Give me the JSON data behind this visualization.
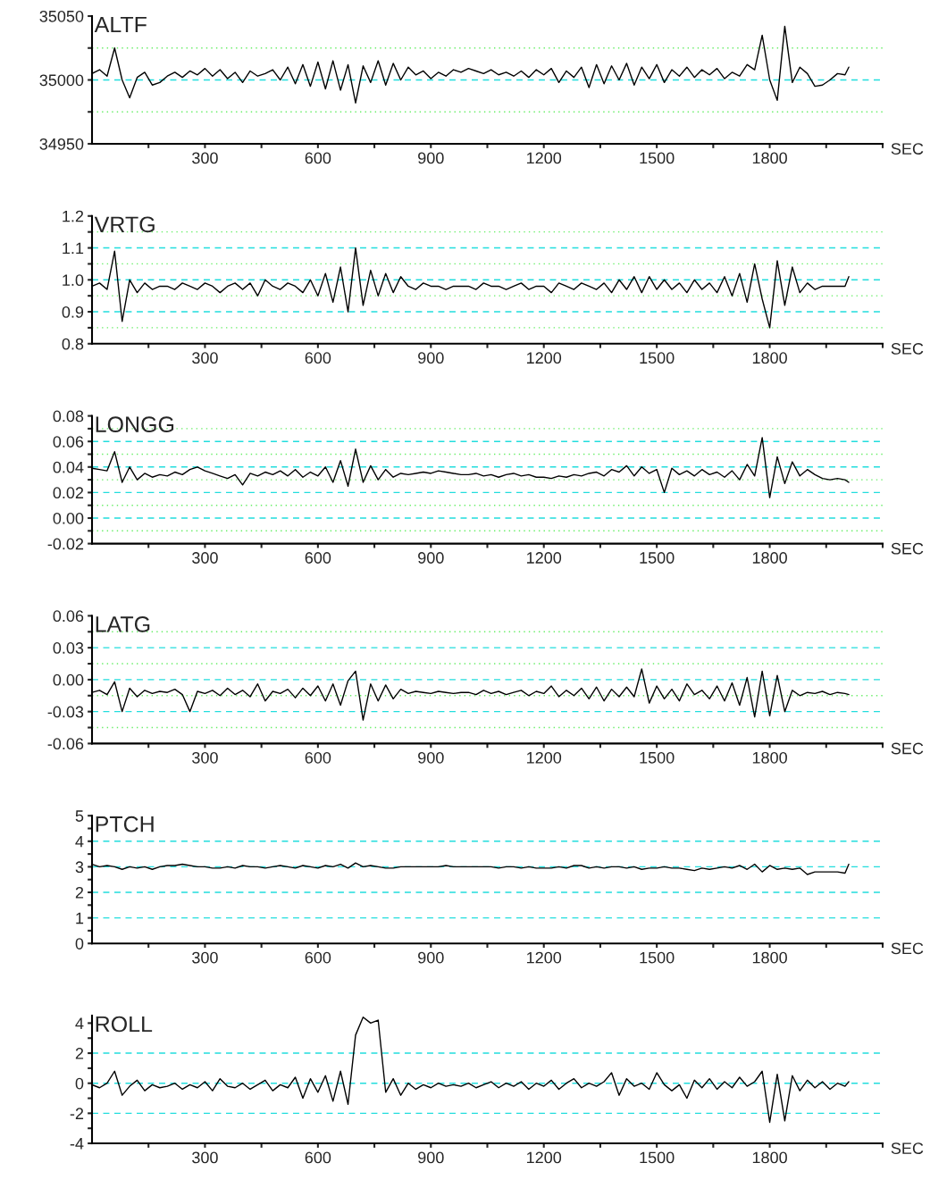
{
  "chart_data": [
    {
      "type": "line",
      "title": "ALTF",
      "xlabel": "SEC",
      "x": [
        0,
        20,
        40,
        60,
        80,
        100,
        120,
        140,
        160,
        180,
        200,
        220,
        240,
        260,
        280,
        300,
        320,
        340,
        360,
        380,
        400,
        420,
        440,
        460,
        480,
        500,
        520,
        540,
        560,
        580,
        600,
        620,
        640,
        660,
        680,
        700,
        720,
        740,
        760,
        780,
        800,
        820,
        840,
        860,
        880,
        900,
        920,
        940,
        960,
        980,
        1000,
        1020,
        1040,
        1060,
        1080,
        1100,
        1120,
        1140,
        1160,
        1180,
        1200,
        1220,
        1240,
        1260,
        1280,
        1300,
        1320,
        1340,
        1360,
        1380,
        1400,
        1420,
        1440,
        1460,
        1480,
        1500,
        1520,
        1540,
        1560,
        1580,
        1600,
        1620,
        1640,
        1660,
        1680,
        1700,
        1720,
        1740,
        1760,
        1780,
        1800,
        1820,
        1840,
        1860,
        1880,
        1900,
        1920,
        1940,
        1960,
        1980,
        2000,
        2010
      ],
      "series": [
        {
          "color": "#000000",
          "values": [
            35005,
            35008,
            35003,
            35025,
            35000,
            34986,
            35002,
            35006,
            34996,
            34998,
            35003,
            35006,
            35002,
            35007,
            35004,
            35009,
            35003,
            35008,
            35001,
            35006,
            34998,
            35007,
            35003,
            35005,
            35008,
            35000,
            35010,
            34997,
            35012,
            34995,
            35014,
            34993,
            35015,
            34992,
            35012,
            34982,
            35011,
            34998,
            35015,
            34996,
            35013,
            35000,
            35010,
            35004,
            35007,
            35001,
            35006,
            35003,
            35008,
            35006,
            35009,
            35007,
            35005,
            35008,
            35004,
            35006,
            35003,
            35007,
            35002,
            35008,
            35004,
            35009,
            34998,
            35007,
            35002,
            35010,
            34994,
            35012,
            34997,
            35011,
            35000,
            35013,
            34996,
            35010,
            35001,
            35012,
            34998,
            35008,
            35003,
            35010,
            35002,
            35008,
            35004,
            35009,
            35001,
            35006,
            35003,
            35012,
            35008,
            35035,
            35000,
            34984,
            35042,
            34998,
            35010,
            35005,
            34995,
            34996,
            35000,
            35005,
            35004,
            35010
          ]
        }
      ],
      "xlim": [
        0,
        2100
      ],
      "xticks": [
        {
          "value": 150,
          "label": null
        },
        300,
        {
          "value": 450,
          "label": null
        },
        600,
        {
          "value": 750,
          "label": null
        },
        900,
        {
          "value": 1050,
          "label": null
        },
        1200,
        {
          "value": 1350,
          "label": null
        },
        1500,
        {
          "value": 1650,
          "label": null
        },
        1800,
        {
          "value": 1950,
          "label": null
        },
        {
          "value": 2100,
          "label": null
        }
      ],
      "ylim": [
        34950,
        35050
      ],
      "yticks": [
        34950,
        {
          "value": 34975,
          "label": null
        },
        35000,
        {
          "value": 35025,
          "label": null
        },
        35050
      ],
      "ref_lines": [
        {
          "axis": "y",
          "value": 35025,
          "color": "#66ee66",
          "line_style": "dotted"
        },
        {
          "axis": "y",
          "value": 35000,
          "color": "#22dddd",
          "line_style": "dashed"
        },
        {
          "axis": "y",
          "value": 34975,
          "color": "#66ee66",
          "line_style": "dotted"
        }
      ]
    },
    {
      "type": "line",
      "title": "VRTG",
      "xlabel": "SEC",
      "x": [
        0,
        20,
        40,
        60,
        80,
        100,
        120,
        140,
        160,
        180,
        200,
        220,
        240,
        260,
        280,
        300,
        320,
        340,
        360,
        380,
        400,
        420,
        440,
        460,
        480,
        500,
        520,
        540,
        560,
        580,
        600,
        620,
        640,
        660,
        680,
        700,
        720,
        740,
        760,
        780,
        800,
        820,
        840,
        860,
        880,
        900,
        920,
        940,
        960,
        980,
        1000,
        1020,
        1040,
        1060,
        1080,
        1100,
        1120,
        1140,
        1160,
        1180,
        1200,
        1220,
        1240,
        1260,
        1280,
        1300,
        1320,
        1340,
        1360,
        1380,
        1400,
        1420,
        1440,
        1460,
        1480,
        1500,
        1520,
        1540,
        1560,
        1580,
        1600,
        1620,
        1640,
        1660,
        1680,
        1700,
        1720,
        1740,
        1760,
        1780,
        1800,
        1820,
        1840,
        1860,
        1880,
        1900,
        1920,
        1940,
        1960,
        1980,
        2000,
        2010
      ],
      "series": [
        {
          "color": "#000000",
          "values": [
            0.98,
            0.99,
            0.97,
            1.09,
            0.87,
            1.0,
            0.96,
            0.99,
            0.97,
            0.98,
            0.98,
            0.97,
            0.99,
            0.98,
            0.97,
            0.99,
            0.98,
            0.96,
            0.98,
            0.99,
            0.97,
            0.99,
            0.95,
            1.0,
            0.98,
            0.97,
            0.99,
            0.98,
            0.96,
            1.0,
            0.95,
            1.02,
            0.93,
            1.04,
            0.9,
            1.1,
            0.92,
            1.03,
            0.95,
            1.02,
            0.96,
            1.01,
            0.98,
            0.97,
            0.99,
            0.98,
            0.98,
            0.97,
            0.98,
            0.98,
            0.98,
            0.97,
            0.99,
            0.98,
            0.98,
            0.97,
            0.98,
            0.99,
            0.97,
            0.98,
            0.98,
            0.96,
            0.99,
            0.98,
            0.97,
            0.99,
            0.98,
            0.97,
            0.99,
            0.96,
            1.0,
            0.97,
            1.01,
            0.96,
            1.01,
            0.97,
            1.0,
            0.97,
            0.99,
            0.96,
            1.0,
            0.97,
            0.99,
            0.96,
            1.01,
            0.95,
            1.02,
            0.93,
            1.05,
            0.94,
            0.85,
            1.06,
            0.92,
            1.04,
            0.96,
            0.99,
            0.97,
            0.98,
            0.98,
            0.98,
            0.98,
            1.01
          ]
        }
      ],
      "xlim": [
        0,
        2100
      ],
      "xticks": [
        {
          "value": 150,
          "label": null
        },
        300,
        {
          "value": 450,
          "label": null
        },
        600,
        {
          "value": 750,
          "label": null
        },
        900,
        {
          "value": 1050,
          "label": null
        },
        1200,
        {
          "value": 1350,
          "label": null
        },
        1500,
        {
          "value": 1650,
          "label": null
        },
        1800,
        {
          "value": 1950,
          "label": null
        },
        {
          "value": 2100,
          "label": null
        }
      ],
      "ylim": [
        0.8,
        1.2
      ],
      "yticks": [
        {
          "value": 0.8,
          "label": "0.8"
        },
        {
          "value": 0.85,
          "label": null
        },
        {
          "value": 0.9,
          "label": "0.9"
        },
        {
          "value": 0.95,
          "label": null
        },
        {
          "value": 1.0,
          "label": "1.0"
        },
        {
          "value": 1.05,
          "label": null
        },
        {
          "value": 1.1,
          "label": "1.1"
        },
        {
          "value": 1.15,
          "label": null
        },
        {
          "value": 1.2,
          "label": "1.2"
        }
      ],
      "ref_lines": [
        {
          "axis": "y",
          "value": 1.15,
          "color": "#66ee66",
          "line_style": "dotted"
        },
        {
          "axis": "y",
          "value": 1.1,
          "color": "#22dddd",
          "line_style": "dashed"
        },
        {
          "axis": "y",
          "value": 1.05,
          "color": "#66ee66",
          "line_style": "dotted"
        },
        {
          "axis": "y",
          "value": 1.0,
          "color": "#22dddd",
          "line_style": "dashed"
        },
        {
          "axis": "y",
          "value": 0.95,
          "color": "#66ee66",
          "line_style": "dotted"
        },
        {
          "axis": "y",
          "value": 0.9,
          "color": "#22dddd",
          "line_style": "dashed"
        },
        {
          "axis": "y",
          "value": 0.85,
          "color": "#66ee66",
          "line_style": "dotted"
        }
      ]
    },
    {
      "type": "line",
      "title": "LONGG",
      "xlabel": "SEC",
      "x": [
        0,
        20,
        40,
        60,
        80,
        100,
        120,
        140,
        160,
        180,
        200,
        220,
        240,
        260,
        280,
        300,
        320,
        340,
        360,
        380,
        400,
        420,
        440,
        460,
        480,
        500,
        520,
        540,
        560,
        580,
        600,
        620,
        640,
        660,
        680,
        700,
        720,
        740,
        760,
        780,
        800,
        820,
        840,
        860,
        880,
        900,
        920,
        940,
        960,
        980,
        1000,
        1020,
        1040,
        1060,
        1080,
        1100,
        1120,
        1140,
        1160,
        1180,
        1200,
        1220,
        1240,
        1260,
        1280,
        1300,
        1320,
        1340,
        1360,
        1380,
        1400,
        1420,
        1440,
        1460,
        1480,
        1500,
        1520,
        1540,
        1560,
        1580,
        1600,
        1620,
        1640,
        1660,
        1680,
        1700,
        1720,
        1740,
        1760,
        1780,
        1800,
        1820,
        1840,
        1860,
        1880,
        1900,
        1920,
        1940,
        1960,
        1980,
        2000,
        2010
      ],
      "series": [
        {
          "color": "#000000",
          "values": [
            0.039,
            0.038,
            0.037,
            0.052,
            0.028,
            0.04,
            0.03,
            0.035,
            0.032,
            0.034,
            0.033,
            0.036,
            0.034,
            0.038,
            0.04,
            0.037,
            0.035,
            0.033,
            0.031,
            0.034,
            0.026,
            0.035,
            0.033,
            0.036,
            0.034,
            0.037,
            0.033,
            0.038,
            0.032,
            0.036,
            0.033,
            0.04,
            0.028,
            0.045,
            0.025,
            0.054,
            0.028,
            0.041,
            0.03,
            0.038,
            0.032,
            0.035,
            0.034,
            0.035,
            0.036,
            0.035,
            0.037,
            0.036,
            0.035,
            0.034,
            0.034,
            0.035,
            0.033,
            0.034,
            0.032,
            0.034,
            0.035,
            0.033,
            0.034,
            0.032,
            0.032,
            0.031,
            0.033,
            0.032,
            0.034,
            0.033,
            0.035,
            0.036,
            0.033,
            0.038,
            0.036,
            0.041,
            0.033,
            0.04,
            0.035,
            0.038,
            0.02,
            0.039,
            0.034,
            0.037,
            0.033,
            0.038,
            0.034,
            0.036,
            0.032,
            0.037,
            0.03,
            0.042,
            0.033,
            0.063,
            0.016,
            0.048,
            0.027,
            0.044,
            0.033,
            0.038,
            0.034,
            0.031,
            0.03,
            0.031,
            0.03,
            0.028
          ]
        }
      ],
      "xlim": [
        0,
        2100
      ],
      "xticks": [
        {
          "value": 150,
          "label": null
        },
        300,
        {
          "value": 450,
          "label": null
        },
        600,
        {
          "value": 750,
          "label": null
        },
        900,
        {
          "value": 1050,
          "label": null
        },
        1200,
        {
          "value": 1350,
          "label": null
        },
        1500,
        {
          "value": 1650,
          "label": null
        },
        1800,
        {
          "value": 1950,
          "label": null
        },
        {
          "value": 2100,
          "label": null
        }
      ],
      "ylim": [
        -0.02,
        0.08
      ],
      "yticks": [
        {
          "value": -0.02,
          "label": "-0.02"
        },
        {
          "value": -0.01,
          "label": null
        },
        {
          "value": 0.0,
          "label": "0.00"
        },
        {
          "value": 0.01,
          "label": null
        },
        {
          "value": 0.02,
          "label": "0.02"
        },
        {
          "value": 0.03,
          "label": null
        },
        {
          "value": 0.04,
          "label": "0.04"
        },
        {
          "value": 0.05,
          "label": null
        },
        {
          "value": 0.06,
          "label": "0.06"
        },
        {
          "value": 0.07,
          "label": null
        },
        {
          "value": 0.08,
          "label": "0.08"
        }
      ],
      "ref_lines": [
        {
          "axis": "y",
          "value": 0.07,
          "color": "#66ee66",
          "line_style": "dotted"
        },
        {
          "axis": "y",
          "value": 0.06,
          "color": "#22dddd",
          "line_style": "dashed"
        },
        {
          "axis": "y",
          "value": 0.05,
          "color": "#66ee66",
          "line_style": "dotted"
        },
        {
          "axis": "y",
          "value": 0.04,
          "color": "#22dddd",
          "line_style": "dashed"
        },
        {
          "axis": "y",
          "value": 0.03,
          "color": "#66ee66",
          "line_style": "dotted"
        },
        {
          "axis": "y",
          "value": 0.02,
          "color": "#22dddd",
          "line_style": "dashed"
        },
        {
          "axis": "y",
          "value": 0.01,
          "color": "#66ee66",
          "line_style": "dotted"
        },
        {
          "axis": "y",
          "value": 0.0,
          "color": "#22dddd",
          "line_style": "dashed"
        },
        {
          "axis": "y",
          "value": -0.01,
          "color": "#66ee66",
          "line_style": "dotted"
        }
      ]
    },
    {
      "type": "line",
      "title": "LATG",
      "xlabel": "SEC",
      "x": [
        0,
        20,
        40,
        60,
        80,
        100,
        120,
        140,
        160,
        180,
        200,
        220,
        240,
        260,
        280,
        300,
        320,
        340,
        360,
        380,
        400,
        420,
        440,
        460,
        480,
        500,
        520,
        540,
        560,
        580,
        600,
        620,
        640,
        660,
        680,
        700,
        720,
        740,
        760,
        780,
        800,
        820,
        840,
        860,
        880,
        900,
        920,
        940,
        960,
        980,
        1000,
        1020,
        1040,
        1060,
        1080,
        1100,
        1120,
        1140,
        1160,
        1180,
        1200,
        1220,
        1240,
        1260,
        1280,
        1300,
        1320,
        1340,
        1360,
        1380,
        1400,
        1420,
        1440,
        1460,
        1480,
        1500,
        1520,
        1540,
        1560,
        1580,
        1600,
        1620,
        1640,
        1660,
        1680,
        1700,
        1720,
        1740,
        1760,
        1780,
        1800,
        1820,
        1840,
        1860,
        1880,
        1900,
        1920,
        1940,
        1960,
        1980,
        2000,
        2010
      ],
      "series": [
        {
          "color": "#000000",
          "values": [
            -0.012,
            -0.01,
            -0.014,
            -0.002,
            -0.03,
            -0.008,
            -0.016,
            -0.01,
            -0.013,
            -0.011,
            -0.012,
            -0.009,
            -0.014,
            -0.03,
            -0.011,
            -0.013,
            -0.01,
            -0.015,
            -0.008,
            -0.014,
            -0.01,
            -0.016,
            -0.004,
            -0.02,
            -0.011,
            -0.013,
            -0.009,
            -0.017,
            -0.008,
            -0.015,
            -0.006,
            -0.02,
            -0.004,
            -0.024,
            -0.001,
            0.008,
            -0.038,
            -0.004,
            -0.02,
            -0.005,
            -0.018,
            -0.009,
            -0.013,
            -0.011,
            -0.012,
            -0.013,
            -0.011,
            -0.012,
            -0.013,
            -0.012,
            -0.012,
            -0.014,
            -0.01,
            -0.013,
            -0.011,
            -0.014,
            -0.012,
            -0.01,
            -0.015,
            -0.011,
            -0.013,
            -0.006,
            -0.016,
            -0.01,
            -0.015,
            -0.008,
            -0.018,
            -0.007,
            -0.02,
            -0.009,
            -0.016,
            -0.007,
            -0.016,
            0.01,
            -0.022,
            -0.006,
            -0.018,
            -0.009,
            -0.02,
            -0.004,
            -0.014,
            -0.01,
            -0.018,
            -0.006,
            -0.02,
            -0.003,
            -0.024,
            0.002,
            -0.035,
            0.008,
            -0.034,
            0.004,
            -0.03,
            -0.01,
            -0.015,
            -0.012,
            -0.013,
            -0.011,
            -0.014,
            -0.012,
            -0.013,
            -0.014
          ]
        }
      ],
      "xlim": [
        0,
        2100
      ],
      "xticks": [
        {
          "value": 150,
          "label": null
        },
        300,
        {
          "value": 450,
          "label": null
        },
        600,
        {
          "value": 750,
          "label": null
        },
        900,
        {
          "value": 1050,
          "label": null
        },
        1200,
        {
          "value": 1350,
          "label": null
        },
        1500,
        {
          "value": 1650,
          "label": null
        },
        1800,
        {
          "value": 1950,
          "label": null
        },
        {
          "value": 2100,
          "label": null
        }
      ],
      "ylim": [
        -0.06,
        0.06
      ],
      "yticks": [
        {
          "value": -0.06,
          "label": "-0.06"
        },
        {
          "value": -0.045,
          "label": null
        },
        {
          "value": -0.03,
          "label": "-0.03"
        },
        {
          "value": -0.015,
          "label": null
        },
        {
          "value": 0.0,
          "label": "0.00"
        },
        {
          "value": 0.015,
          "label": null
        },
        {
          "value": 0.03,
          "label": "0.03"
        },
        {
          "value": 0.045,
          "label": null
        },
        {
          "value": 0.06,
          "label": "0.06"
        }
      ],
      "ref_lines": [
        {
          "axis": "y",
          "value": 0.045,
          "color": "#66ee66",
          "line_style": "dotted"
        },
        {
          "axis": "y",
          "value": 0.03,
          "color": "#22dddd",
          "line_style": "dashed"
        },
        {
          "axis": "y",
          "value": 0.015,
          "color": "#66ee66",
          "line_style": "dotted"
        },
        {
          "axis": "y",
          "value": 0.0,
          "color": "#22dddd",
          "line_style": "dashed"
        },
        {
          "axis": "y",
          "value": -0.015,
          "color": "#66ee66",
          "line_style": "dotted"
        },
        {
          "axis": "y",
          "value": -0.03,
          "color": "#22dddd",
          "line_style": "dashed"
        },
        {
          "axis": "y",
          "value": -0.045,
          "color": "#66ee66",
          "line_style": "dotted"
        }
      ]
    },
    {
      "type": "line",
      "title": "PTCH",
      "xlabel": "SEC",
      "x": [
        0,
        20,
        40,
        60,
        80,
        100,
        120,
        140,
        160,
        180,
        200,
        220,
        240,
        260,
        280,
        300,
        320,
        340,
        360,
        380,
        400,
        420,
        440,
        460,
        480,
        500,
        520,
        540,
        560,
        580,
        600,
        620,
        640,
        660,
        680,
        700,
        720,
        740,
        760,
        780,
        800,
        820,
        840,
        860,
        880,
        900,
        920,
        940,
        960,
        980,
        1000,
        1020,
        1040,
        1060,
        1080,
        1100,
        1120,
        1140,
        1160,
        1180,
        1200,
        1220,
        1240,
        1260,
        1280,
        1300,
        1320,
        1340,
        1360,
        1380,
        1400,
        1420,
        1440,
        1460,
        1480,
        1500,
        1520,
        1540,
        1560,
        1580,
        1600,
        1620,
        1640,
        1660,
        1680,
        1700,
        1720,
        1740,
        1760,
        1780,
        1800,
        1820,
        1840,
        1860,
        1880,
        1900,
        1920,
        1940,
        1960,
        1980,
        2000,
        2010
      ],
      "series": [
        {
          "color": "#000000",
          "values": [
            3.1,
            3.0,
            3.05,
            3.0,
            2.9,
            3.0,
            2.95,
            3.0,
            2.9,
            3.0,
            3.05,
            3.05,
            3.1,
            3.05,
            3.0,
            3.0,
            2.95,
            2.95,
            3.0,
            2.95,
            3.05,
            3.0,
            3.0,
            2.95,
            3.0,
            3.05,
            3.0,
            2.95,
            3.05,
            3.0,
            2.95,
            3.05,
            3.0,
            3.1,
            2.95,
            3.15,
            3.0,
            3.05,
            3.0,
            2.95,
            2.95,
            3.0,
            3.0,
            3.0,
            3.0,
            3.0,
            3.0,
            3.05,
            3.0,
            3.0,
            3.0,
            3.0,
            3.0,
            3.0,
            2.95,
            3.0,
            3.0,
            2.95,
            3.0,
            2.95,
            2.95,
            2.95,
            3.0,
            2.95,
            3.05,
            3.05,
            2.95,
            3.0,
            2.95,
            3.0,
            3.0,
            2.95,
            3.0,
            2.9,
            2.95,
            2.95,
            3.0,
            2.95,
            2.95,
            2.9,
            2.85,
            2.95,
            2.9,
            2.95,
            3.0,
            2.95,
            3.05,
            2.9,
            3.1,
            2.8,
            3.05,
            2.9,
            2.95,
            2.9,
            2.95,
            2.7,
            2.8,
            2.8,
            2.8,
            2.8,
            2.75,
            3.1
          ]
        }
      ],
      "xlim": [
        0,
        2100
      ],
      "xticks": [
        {
          "value": 150,
          "label": null
        },
        300,
        {
          "value": 450,
          "label": null
        },
        600,
        {
          "value": 750,
          "label": null
        },
        900,
        {
          "value": 1050,
          "label": null
        },
        1200,
        {
          "value": 1350,
          "label": null
        },
        1500,
        {
          "value": 1650,
          "label": null
        },
        1800,
        {
          "value": 1950,
          "label": null
        },
        {
          "value": 2100,
          "label": null
        }
      ],
      "ylim": [
        0,
        5
      ],
      "yticks": [
        0,
        {
          "value": 0.5,
          "label": null
        },
        1,
        {
          "value": 1.5,
          "label": null
        },
        2,
        {
          "value": 2.5,
          "label": null
        },
        3,
        {
          "value": 3.5,
          "label": null
        },
        4,
        {
          "value": 4.5,
          "label": null
        },
        5
      ],
      "ref_lines": [
        {
          "axis": "y",
          "value": 4,
          "color": "#22dddd",
          "line_style": "dashed"
        },
        {
          "axis": "y",
          "value": 3,
          "color": "#22dddd",
          "line_style": "dashed"
        },
        {
          "axis": "y",
          "value": 2,
          "color": "#22dddd",
          "line_style": "dashed"
        },
        {
          "axis": "y",
          "value": 1,
          "color": "#22dddd",
          "line_style": "dashed"
        }
      ]
    },
    {
      "type": "line",
      "title": "ROLL",
      "xlabel": "SEC",
      "x": [
        0,
        20,
        40,
        60,
        80,
        100,
        120,
        140,
        160,
        180,
        200,
        220,
        240,
        260,
        280,
        300,
        320,
        340,
        360,
        380,
        400,
        420,
        440,
        460,
        480,
        500,
        520,
        540,
        560,
        580,
        600,
        620,
        640,
        660,
        680,
        700,
        720,
        740,
        760,
        780,
        800,
        820,
        840,
        860,
        880,
        900,
        920,
        940,
        960,
        980,
        1000,
        1020,
        1040,
        1060,
        1080,
        1100,
        1120,
        1140,
        1160,
        1180,
        1200,
        1220,
        1240,
        1260,
        1280,
        1300,
        1320,
        1340,
        1360,
        1380,
        1400,
        1420,
        1440,
        1460,
        1480,
        1500,
        1520,
        1540,
        1560,
        1580,
        1600,
        1620,
        1640,
        1660,
        1680,
        1700,
        1720,
        1740,
        1760,
        1780,
        1800,
        1820,
        1840,
        1860,
        1880,
        1900,
        1920,
        1940,
        1960,
        1980,
        2000,
        2010
      ],
      "series": [
        {
          "color": "#000000",
          "values": [
            -0.1,
            -0.3,
            0.0,
            0.8,
            -0.8,
            -0.2,
            0.2,
            -0.5,
            -0.1,
            -0.3,
            -0.2,
            0.0,
            -0.4,
            -0.1,
            -0.3,
            0.1,
            -0.5,
            0.3,
            -0.2,
            -0.3,
            0.0,
            -0.4,
            -0.1,
            0.2,
            -0.5,
            -0.1,
            -0.3,
            0.4,
            -1.0,
            0.3,
            -0.6,
            0.5,
            -1.2,
            0.8,
            -1.4,
            3.2,
            4.4,
            4.0,
            4.2,
            -0.6,
            0.3,
            -0.8,
            0.0,
            -0.4,
            -0.1,
            -0.3,
            0.0,
            -0.2,
            -0.1,
            -0.2,
            0.0,
            -0.3,
            -0.1,
            0.1,
            -0.3,
            0.0,
            -0.2,
            0.1,
            -0.4,
            0.0,
            -0.2,
            0.2,
            -0.4,
            0.0,
            0.3,
            -0.3,
            0.0,
            -0.2,
            0.1,
            0.7,
            -0.8,
            0.3,
            -0.2,
            0.0,
            -0.4,
            0.7,
            -0.1,
            -0.5,
            -0.1,
            -1.0,
            0.2,
            -0.3,
            0.3,
            -0.4,
            0.1,
            -0.3,
            0.4,
            -0.2,
            0.1,
            0.8,
            -2.6,
            0.6,
            -2.5,
            0.5,
            -0.5,
            0.2,
            -0.3,
            0.1,
            -0.4,
            0.0,
            -0.2,
            0.1
          ]
        }
      ],
      "xlim": [
        0,
        2100
      ],
      "xticks": [
        {
          "value": 150,
          "label": null
        },
        300,
        {
          "value": 450,
          "label": null
        },
        600,
        {
          "value": 750,
          "label": null
        },
        900,
        {
          "value": 1050,
          "label": null
        },
        1200,
        {
          "value": 1350,
          "label": null
        },
        1500,
        {
          "value": 1650,
          "label": null
        },
        1800,
        {
          "value": 1950,
          "label": null
        },
        {
          "value": 2100,
          "label": null
        }
      ],
      "ylim": [
        -4,
        4.5
      ],
      "yticks": [
        -4,
        {
          "value": -3,
          "label": null
        },
        -2,
        {
          "value": -1,
          "label": null
        },
        0,
        {
          "value": 1,
          "label": null
        },
        2,
        {
          "value": 3,
          "label": null
        },
        4
      ],
      "ref_lines": [
        {
          "axis": "y",
          "value": 2,
          "color": "#22dddd",
          "line_style": "dashed"
        },
        {
          "axis": "y",
          "value": 0,
          "color": "#22dddd",
          "line_style": "dashed"
        },
        {
          "axis": "y",
          "value": -2,
          "color": "#22dddd",
          "line_style": "dashed"
        }
      ]
    }
  ]
}
